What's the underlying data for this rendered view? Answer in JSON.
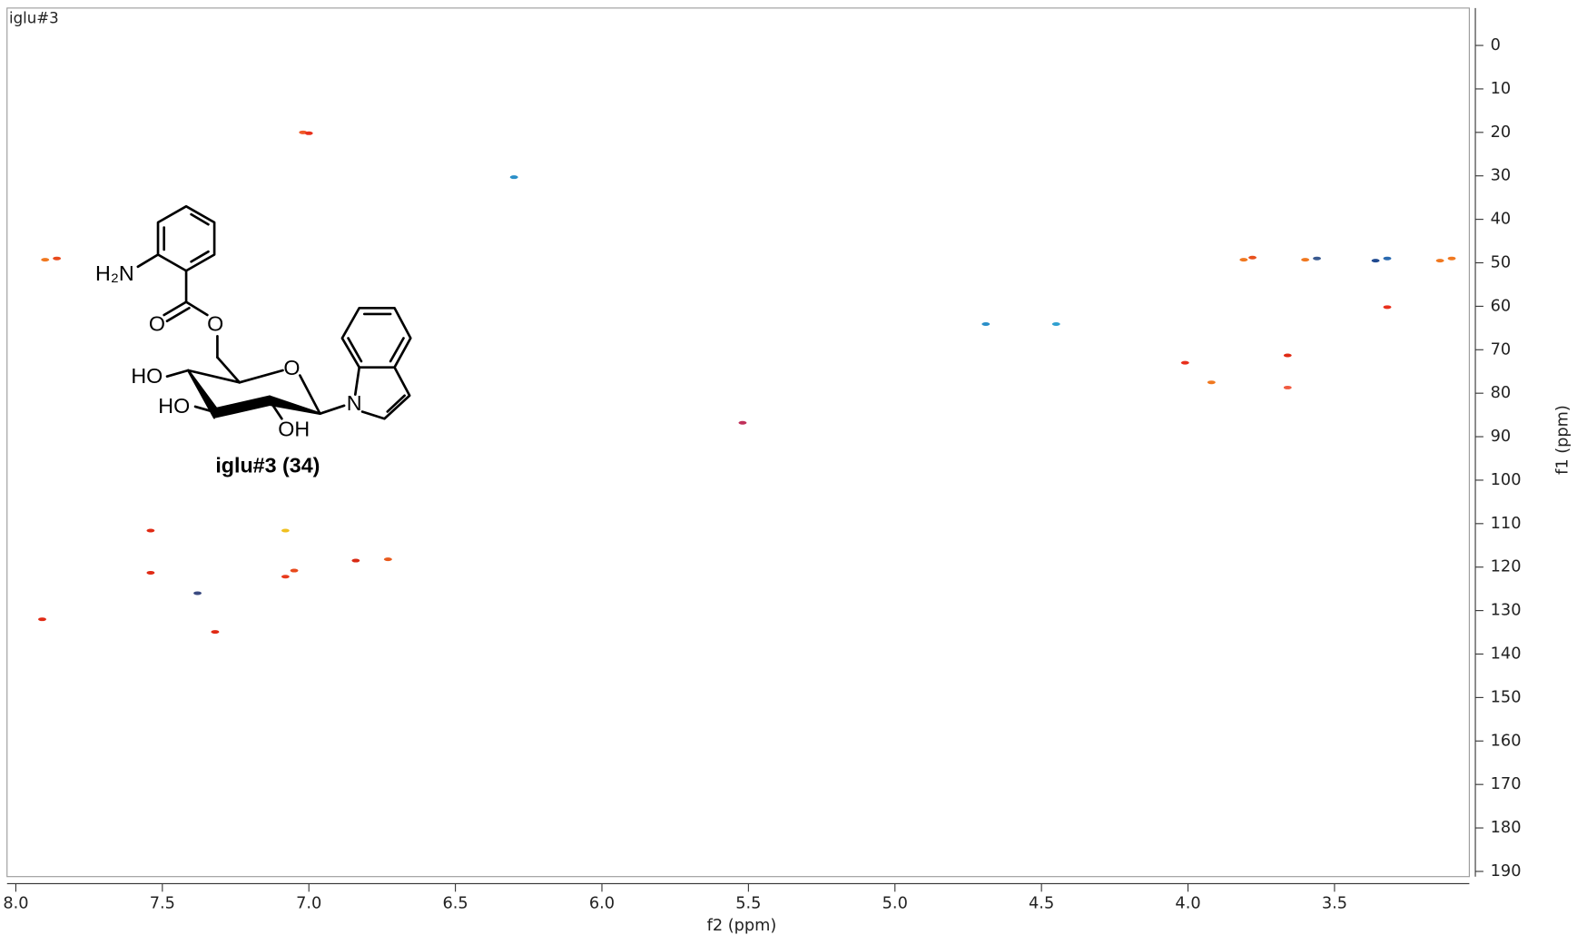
{
  "chart_data": {
    "type": "scatter",
    "title": "iglu#3",
    "xlabel": "f2 (ppm)",
    "ylabel": "f1 (ppm)",
    "xlim": [
      8.03,
      3.04
    ],
    "ylim": [
      -8.6,
      191.2
    ],
    "xticks": [
      {
        "value": 8.0,
        "label": "8.0"
      },
      7.5,
      {
        "value": 7.0,
        "label": "7.0"
      },
      6.5,
      {
        "value": 6.0,
        "label": "6.0"
      },
      5.5,
      {
        "value": 5.0,
        "label": "5.0"
      },
      4.5,
      {
        "value": 4.0,
        "label": "4.0"
      },
      3.5
    ],
    "yticks": [
      0,
      10,
      20,
      30,
      40,
      50,
      60,
      70,
      80,
      90,
      100,
      110,
      120,
      130,
      140,
      150,
      160,
      170,
      180,
      190
    ],
    "x": [
      7.02,
      7.0,
      6.3,
      7.9,
      7.86,
      7.54,
      7.54,
      7.38,
      7.91,
      7.32,
      7.08,
      7.08,
      7.05,
      6.84,
      6.73,
      5.52,
      4.69,
      4.45,
      4.01,
      3.92,
      3.81,
      3.78,
      3.66,
      3.66,
      3.6,
      3.56,
      3.36,
      3.32,
      3.32,
      3.14,
      3.1
    ],
    "y": [
      20,
      20.2,
      30.3,
      49.3,
      49,
      111.6,
      121.3,
      126,
      132,
      134.9,
      111.6,
      122.2,
      120.8,
      118.5,
      118.2,
      86.8,
      64.1,
      64.1,
      73,
      77.5,
      49.3,
      48.8,
      71.3,
      78.7,
      49.3,
      49,
      49.5,
      49,
      60.2,
      49.5,
      49
    ],
    "colors": [
      "#f05a28",
      "#e8301c",
      "#2a8fc8",
      "#f07820",
      "#e84a1c",
      "#e02a14",
      "#e02a14",
      "#3a4a80",
      "#e02a14",
      "#e02a14",
      "#f0c020",
      "#e83a1c",
      "#e84a1c",
      "#d82a14",
      "#e85a1c",
      "#c0305a",
      "#2a8fc8",
      "#30a0d0",
      "#e8301c",
      "#f07820",
      "#f07820",
      "#e8501c",
      "#e02a14",
      "#f05a40",
      "#f07820",
      "#3a5a90",
      "#204a90",
      "#2a6ab0",
      "#e8301c",
      "#f07820",
      "#f07820"
    ],
    "structure_caption": "iglu#3 (34)",
    "structure_labels": [
      "H₂N",
      "O",
      "O",
      "HO",
      "HO",
      "OH",
      "O",
      "N"
    ]
  }
}
